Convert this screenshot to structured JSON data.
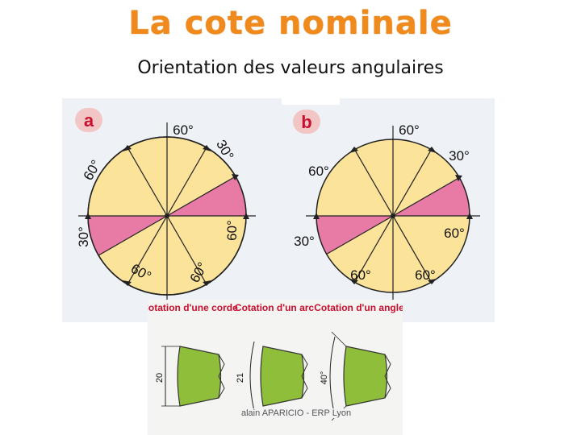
{
  "title": "La cote nominale",
  "subtitle": "Orientation des valeurs angulaires",
  "diagram_a": {
    "badge": "a",
    "labels": {
      "top": "60°",
      "upper_right": "30°",
      "upper_left": "60°",
      "left": "30°",
      "right": "60°",
      "bottom_left": "60°",
      "bottom_right": "60°"
    }
  },
  "diagram_b": {
    "badge": "b",
    "labels": {
      "top": "60°",
      "upper_right": "30°",
      "upper_left": "60°",
      "left": "30°",
      "right": "60°",
      "bottom_left": "60°",
      "bottom_right": "60°"
    }
  },
  "cotation": {
    "corde_label": "Cotation d'une corde",
    "arc_label": "Cotation d'un arc",
    "angle_label": "Cotation d'un angle",
    "corde_value": "20",
    "arc_value": "21",
    "angle_value": "40°"
  },
  "footer": "alain APARICIO - ERP Lyon",
  "colors": {
    "title": "#f08a1c",
    "disk": "#fbe39a",
    "pink": "#e87aa6",
    "badge": "#f3c6c6",
    "badge_text": "#c8102e",
    "part_green": "#8fbf3a"
  }
}
